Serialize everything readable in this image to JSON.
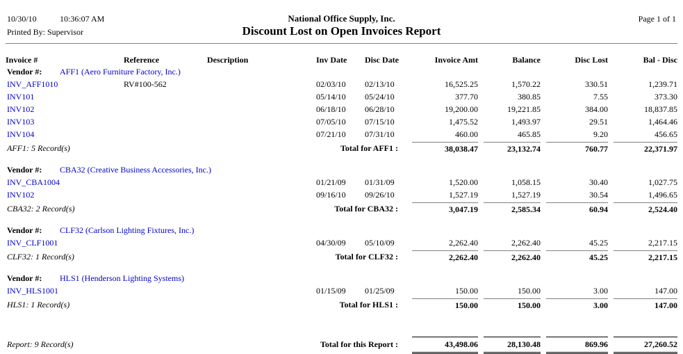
{
  "header": {
    "date": "10/30/10",
    "time": "10:36:07 AM",
    "printed_by": "Printed By: Supervisor",
    "company": "National Office Supply, Inc.",
    "title": "Discount Lost on Open Invoices Report",
    "page": "Page 1 of 1"
  },
  "columns": [
    "Invoice #",
    "Reference",
    "Description",
    "Inv Date",
    "Disc Date",
    "Invoice Amt",
    "Balance",
    "Disc Lost",
    "Bal - Disc"
  ],
  "vendor_label": "Vendor #:",
  "groups": [
    {
      "vendor": "AFF1 (Aero Furniture Factory, Inc.)",
      "rows": [
        {
          "invoice": "INV_AFF1010",
          "reference": "RV#100-562",
          "description": "",
          "inv_date": "02/03/10",
          "disc_date": "02/13/10",
          "invoice_amt": "16,525.25",
          "balance": "1,570.22",
          "disc_lost": "330.51",
          "bal_disc": "1,239.71"
        },
        {
          "invoice": "INV101",
          "reference": "",
          "description": "",
          "inv_date": "05/14/10",
          "disc_date": "05/24/10",
          "invoice_amt": "377.70",
          "balance": "380.85",
          "disc_lost": "7.55",
          "bal_disc": "373.30"
        },
        {
          "invoice": "INV102",
          "reference": "",
          "description": "",
          "inv_date": "06/18/10",
          "disc_date": "06/28/10",
          "invoice_amt": "19,200.00",
          "balance": "19,221.85",
          "disc_lost": "384.00",
          "bal_disc": "18,837.85"
        },
        {
          "invoice": "INV103",
          "reference": "",
          "description": "",
          "inv_date": "07/05/10",
          "disc_date": "07/15/10",
          "invoice_amt": "1,475.52",
          "balance": "1,493.97",
          "disc_lost": "29.51",
          "bal_disc": "1,464.46"
        },
        {
          "invoice": "INV104",
          "reference": "",
          "description": "",
          "inv_date": "07/21/10",
          "disc_date": "07/31/10",
          "invoice_amt": "460.00",
          "balance": "465.85",
          "disc_lost": "9.20",
          "bal_disc": "456.65"
        }
      ],
      "record_count": "AFF1: 5 Record(s)",
      "total_label": "Total for AFF1 :",
      "totals": {
        "invoice_amt": "38,038.47",
        "balance": "23,132.74",
        "disc_lost": "760.77",
        "bal_disc": "22,371.97"
      }
    },
    {
      "vendor": "CBA32 (Creative Business Accessories, Inc.)",
      "rows": [
        {
          "invoice": "INV_CBA1004",
          "reference": "",
          "description": "",
          "inv_date": "01/21/09",
          "disc_date": "01/31/09",
          "invoice_amt": "1,520.00",
          "balance": "1,058.15",
          "disc_lost": "30.40",
          "bal_disc": "1,027.75"
        },
        {
          "invoice": "INV102",
          "reference": "",
          "description": "",
          "inv_date": "09/16/10",
          "disc_date": "09/26/10",
          "invoice_amt": "1,527.19",
          "balance": "1,527.19",
          "disc_lost": "30.54",
          "bal_disc": "1,496.65"
        }
      ],
      "record_count": "CBA32: 2 Record(s)",
      "total_label": "Total for CBA32 :",
      "totals": {
        "invoice_amt": "3,047.19",
        "balance": "2,585.34",
        "disc_lost": "60.94",
        "bal_disc": "2,524.40"
      }
    },
    {
      "vendor": "CLF32 (Carlson Lighting Fixtures, Inc.)",
      "rows": [
        {
          "invoice": "INV_CLF1001",
          "reference": "",
          "description": "",
          "inv_date": "04/30/09",
          "disc_date": "05/10/09",
          "invoice_amt": "2,262.40",
          "balance": "2,262.40",
          "disc_lost": "45.25",
          "bal_disc": "2,217.15"
        }
      ],
      "record_count": "CLF32: 1 Record(s)",
      "total_label": "Total for CLF32 :",
      "totals": {
        "invoice_amt": "2,262.40",
        "balance": "2,262.40",
        "disc_lost": "45.25",
        "bal_disc": "2,217.15"
      }
    },
    {
      "vendor": "HLS1 (Henderson Lighting Systems)",
      "rows": [
        {
          "invoice": "INV_HLS1001",
          "reference": "",
          "description": "",
          "inv_date": "01/15/09",
          "disc_date": "01/25/09",
          "invoice_amt": "150.00",
          "balance": "150.00",
          "disc_lost": "3.00",
          "bal_disc": "147.00"
        }
      ],
      "record_count": "HLS1: 1 Record(s)",
      "total_label": "Total for HLS1 :",
      "totals": {
        "invoice_amt": "150.00",
        "balance": "150.00",
        "disc_lost": "3.00",
        "bal_disc": "147.00"
      }
    }
  ],
  "report_total": {
    "record_count": "Report: 9 Record(s)",
    "total_label": "Total for this Report :",
    "totals": {
      "invoice_amt": "43,498.06",
      "balance": "28,130.48",
      "disc_lost": "869.96",
      "bal_disc": "27,260.52"
    }
  },
  "colors": {
    "link_blue": "#0000cc"
  }
}
